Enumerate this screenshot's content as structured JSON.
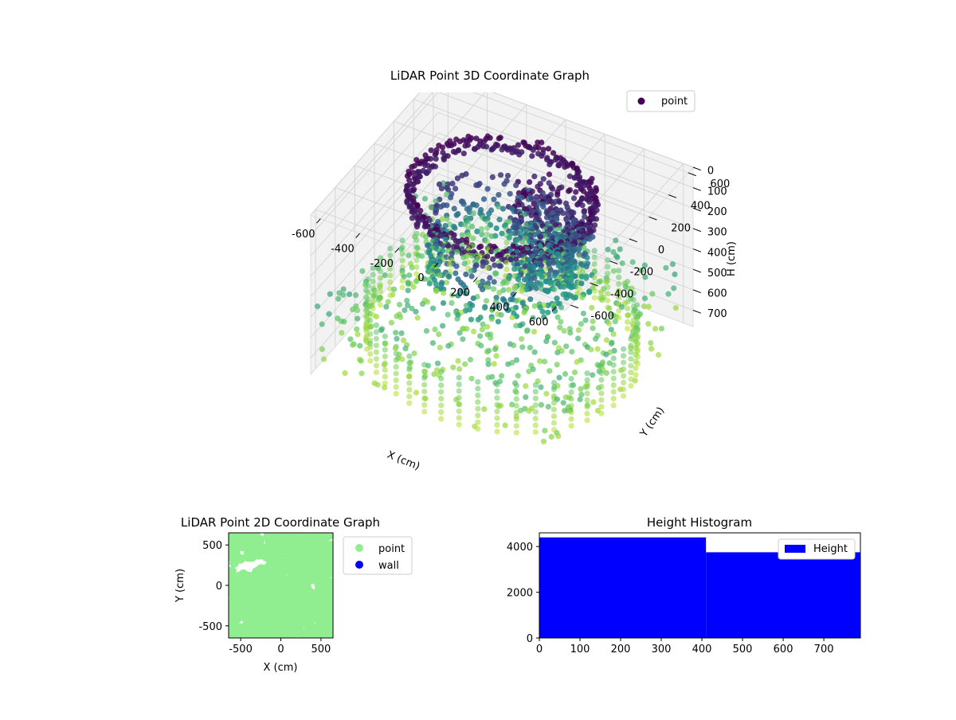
{
  "colors": {
    "viridis_dark": "#440154",
    "viridis_mid": "#31688e",
    "viridis_teal": "#35b779",
    "viridis_yellow": "#b5de2b",
    "point_2d": "#90ee90",
    "wall_2d": "#0000ff",
    "histogram_bar": "#0000ff",
    "pane": "#f2f2f2",
    "grid": "#d6d6d6"
  },
  "chart_data": [
    {
      "type": "scatter",
      "projection": "3d",
      "title": "LiDAR Point 3D Coordinate Graph",
      "xlabel": "X (cm)",
      "ylabel": "Y (cm)",
      "zlabel": "H (cm)",
      "x_ticks": [
        -600,
        -400,
        -200,
        0,
        200,
        400,
        600
      ],
      "y_ticks": [
        -600,
        -400,
        -200,
        0,
        200,
        400,
        600
      ],
      "z_ticks": [
        0,
        100,
        200,
        300,
        400,
        500,
        600,
        700
      ],
      "xlim": [
        -650,
        650
      ],
      "ylim": [
        -650,
        650
      ],
      "zlim": [
        0,
        780
      ],
      "z_inverted": true,
      "colormap": "viridis",
      "legend": {
        "position": "top-right",
        "entries": [
          "point"
        ]
      },
      "series": [
        {
          "name": "point",
          "structures": [
            {
              "kind": "ring",
              "radius": 420,
              "h_range": [
                0,
                80
              ]
            },
            {
              "kind": "ring",
              "radius": 320,
              "h_range": [
                100,
                450
              ]
            },
            {
              "kind": "cluster",
              "center_x": 200,
              "center_y": 100,
              "radius": 200,
              "h_range": [
                0,
                450
              ]
            },
            {
              "kind": "columns",
              "radius": 620,
              "h_range": [
                550,
                780
              ]
            },
            {
              "kind": "scatter",
              "radius": 650,
              "h_range": [
                450,
                750
              ]
            }
          ]
        }
      ]
    },
    {
      "type": "scatter",
      "title": "LiDAR Point 2D Coordinate Graph",
      "xlabel": "X (cm)",
      "ylabel": "Y (cm)",
      "x_ticks": [
        -500,
        0,
        500
      ],
      "y_ticks": [
        -500,
        0,
        500
      ],
      "xlim": [
        -650,
        650
      ],
      "ylim": [
        -650,
        650
      ],
      "legend": {
        "position": "outside-right",
        "entries": [
          "point",
          "wall"
        ]
      },
      "series": [
        {
          "name": "point",
          "color": "#90ee90"
        },
        {
          "name": "wall",
          "color": "#0000ff"
        }
      ]
    },
    {
      "type": "bar",
      "title": "Height Histogram",
      "x_ticks": [
        0,
        100,
        200,
        300,
        400,
        500,
        600,
        700
      ],
      "y_ticks": [
        0,
        2000,
        4000
      ],
      "xlim": [
        0,
        790
      ],
      "ylim": [
        0,
        4600
      ],
      "legend": {
        "position": "top-right",
        "entries": [
          "Height"
        ]
      },
      "bins": [
        {
          "x0": 0,
          "x1": 410,
          "count": 4400
        },
        {
          "x0": 410,
          "x1": 790,
          "count": 3750
        }
      ],
      "series": [
        {
          "name": "Height",
          "color": "#0000ff"
        }
      ]
    }
  ]
}
